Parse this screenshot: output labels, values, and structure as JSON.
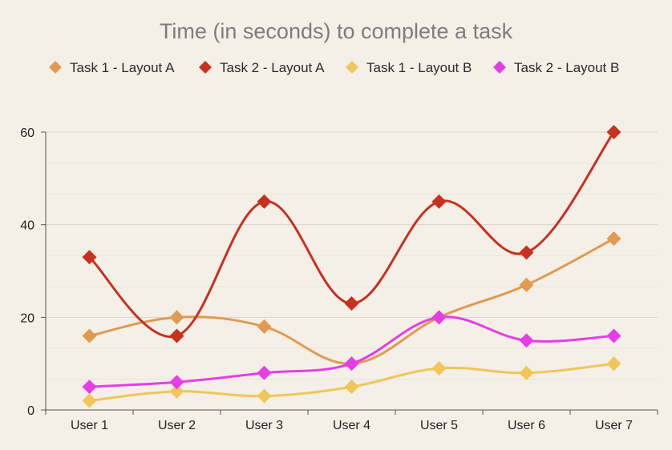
{
  "chart_data": {
    "type": "line",
    "title": "Time (in seconds) to complete a task",
    "categories": [
      "User 1",
      "User 2",
      "User 3",
      "User 4",
      "User 5",
      "User 6",
      "User 7"
    ],
    "ylim": [
      0,
      60
    ],
    "yticks": [
      0,
      20,
      40,
      60
    ],
    "grid": true,
    "smooth": true,
    "legend_position": "top",
    "series": [
      {
        "name": "Task 1 - Layout A",
        "color": "#e09a52",
        "values": [
          16,
          20,
          18,
          10,
          20,
          27,
          37
        ]
      },
      {
        "name": "Task 2 - Layout A",
        "color": "#c8301f",
        "values": [
          33,
          16,
          45,
          23,
          45,
          34,
          60
        ]
      },
      {
        "name": "Task 1 - Layout B",
        "color": "#f0c65a",
        "values": [
          2,
          4,
          3,
          5,
          9,
          8,
          10
        ]
      },
      {
        "name": "Task 2 - Layout B",
        "color": "#e63de8",
        "values": [
          5,
          6,
          8,
          10,
          20,
          15,
          16
        ]
      }
    ]
  }
}
